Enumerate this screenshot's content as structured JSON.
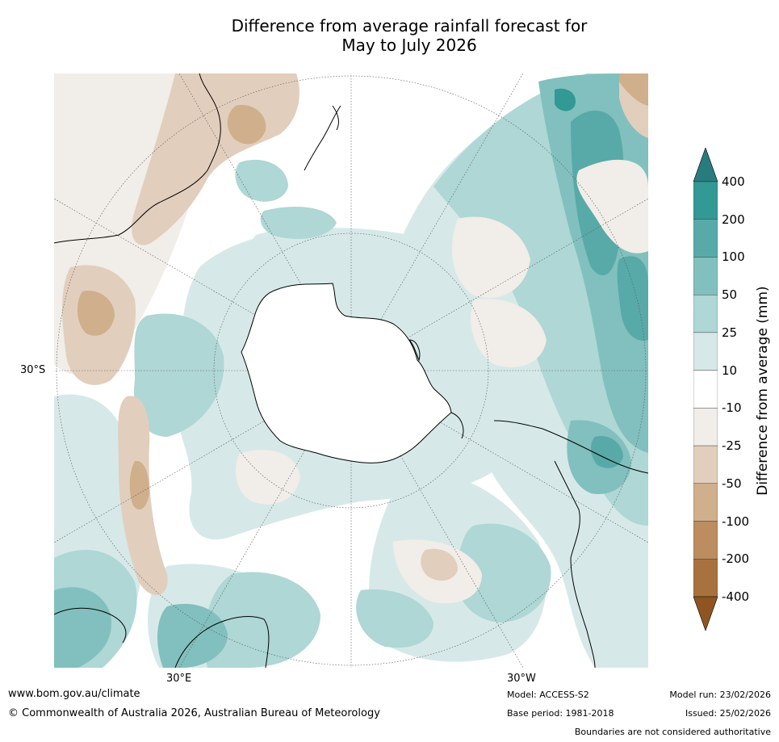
{
  "title": {
    "line1": "Difference from average rainfall forecast for",
    "line2": "May to July 2026"
  },
  "map": {
    "lat_label": "30°S",
    "lon_labels": [
      "30°E",
      "30°W"
    ]
  },
  "legend": {
    "title": "Difference from average (mm)",
    "ticks": [
      "400",
      "200",
      "100",
      "50",
      "25",
      "10",
      "-10",
      "-25",
      "-50",
      "-100",
      "-200",
      "-400"
    ],
    "colors": {
      "extend_high": "#287c7e",
      "b200_400": "#329995",
      "b100_200": "#58aaa8",
      "b50_100": "#81c0be",
      "b25_50": "#aed7d5",
      "b10_25": "#d6e9e8",
      "b_10_10": "#ffffff",
      "b_25_10": "#f1ede8",
      "b_50_25": "#e2cebd",
      "b_100_50": "#cfaf8c",
      "b_200_100": "#bc8d60",
      "b_400_200": "#a8723e",
      "extend_low": "#8e5520"
    }
  },
  "footer": {
    "url": "www.bom.gov.au/climate",
    "copyright": "© Commonwealth of Australia 2026, Australian Bureau of Meteorology",
    "model": "Model: ACCESS-S2",
    "base_period": "Base period: 1981-2018",
    "model_run": "Model run: 23/02/2026",
    "issued": "Issued: 25/02/2026",
    "disclaimer": "Boundaries are not considered authoritative"
  }
}
